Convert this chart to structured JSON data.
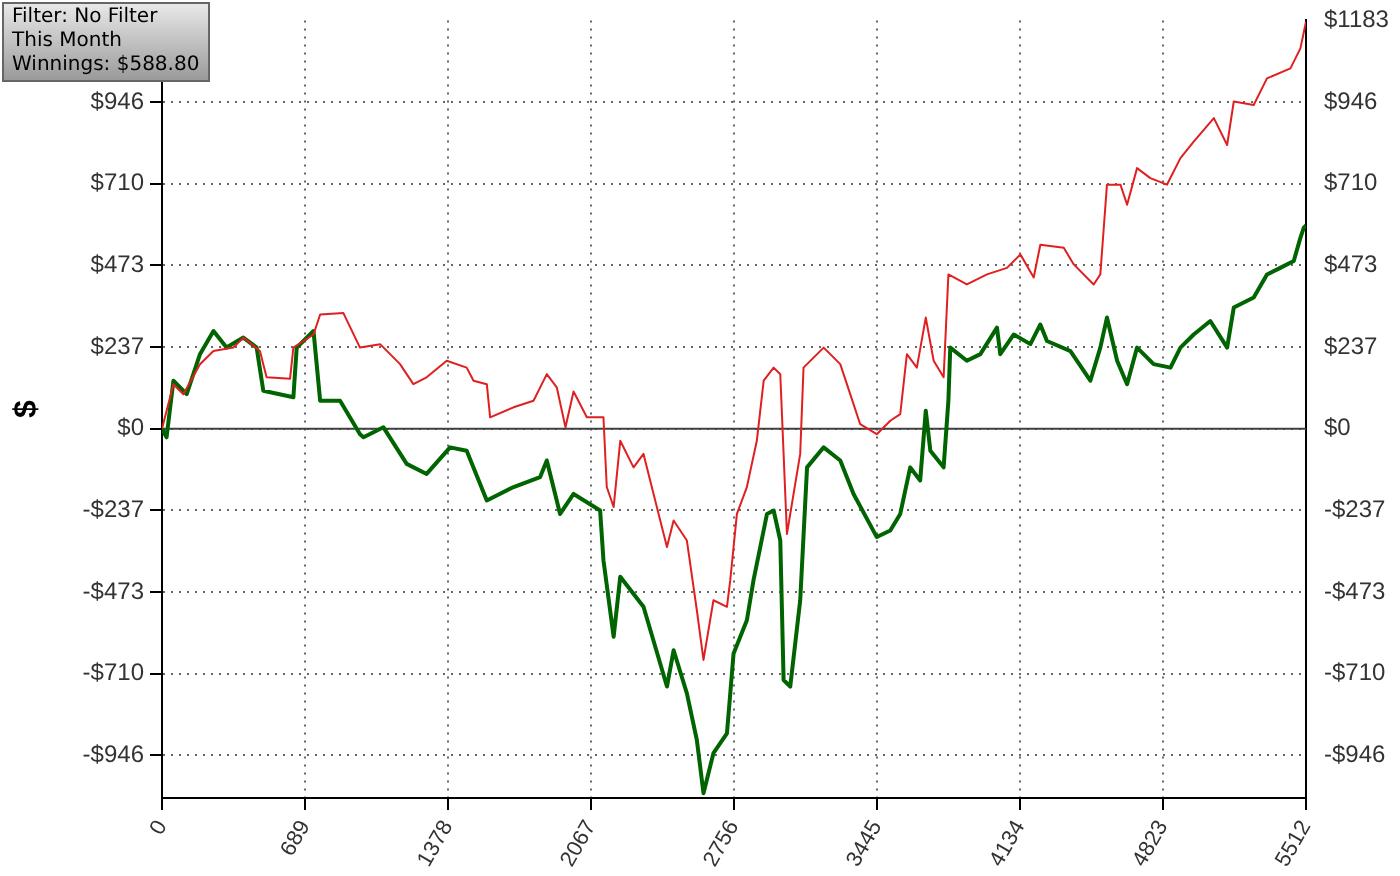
{
  "chart_data": {
    "type": "line",
    "ylabel": "$",
    "annotations": [
      "Filter: No Filter",
      "This Month",
      "Winnings: $588.80"
    ],
    "xlim": [
      0,
      5512
    ],
    "xticks": [
      0,
      689,
      1378,
      2067,
      2756,
      3445,
      4134,
      4823,
      5512
    ],
    "ylim": [
      -1070,
      1183
    ],
    "yticks": [
      {
        "value": -946,
        "label": "-$946"
      },
      {
        "value": -710,
        "label": "-$710"
      },
      {
        "value": -473,
        "label": "-$473"
      },
      {
        "value": -237,
        "label": "-$237"
      },
      {
        "value": 0,
        "label": "$0"
      },
      {
        "value": 237,
        "label": "$237"
      },
      {
        "value": 473,
        "label": "$473"
      },
      {
        "value": 710,
        "label": "$710"
      },
      {
        "value": 946,
        "label": "$946"
      }
    ],
    "y2lim": [
      -1070,
      1183
    ],
    "y2ticks": [
      {
        "value": -946,
        "label": "-$946"
      },
      {
        "value": -710,
        "label": "-$710"
      },
      {
        "value": -473,
        "label": "-$473"
      },
      {
        "value": -237,
        "label": "-$237"
      },
      {
        "value": 0,
        "label": "$0"
      },
      {
        "value": 237,
        "label": "$237"
      },
      {
        "value": 473,
        "label": "$473"
      },
      {
        "value": 710,
        "label": "$710"
      },
      {
        "value": 946,
        "label": "$946"
      },
      {
        "value": 1183,
        "label": "$1183"
      }
    ],
    "grid": true,
    "legend": false,
    "marker": "none",
    "line_style": "solid",
    "ref_lines": [
      {
        "axis": "y",
        "value": 0,
        "color": "#404040",
        "line_style": "solid"
      }
    ],
    "series": [
      {
        "color": "#e02020",
        "x": [
          0,
          55,
          103,
          183,
          248,
          344,
          392,
          472,
          488,
          504,
          617,
          633,
          730,
          762,
          874,
          954,
          1051,
          1147,
          1211,
          1275,
          1372,
          1468,
          1501,
          1565,
          1581,
          1694,
          1790,
          1854,
          1902,
          1944,
          1983,
          2047,
          2127,
          2143,
          2176,
          2208,
          2272,
          2320,
          2352,
          2433,
          2465,
          2529,
          2577,
          2609,
          2657,
          2722,
          2738,
          2770,
          2818,
          2866,
          2899,
          2947,
          2979,
          3011,
          3075,
          3091,
          3188,
          3268,
          3316,
          3364,
          3444,
          3509,
          3557,
          3589,
          3637,
          3680,
          3718,
          3766,
          3789,
          3878,
          3975,
          4071,
          4136,
          4200,
          4232,
          4345,
          4393,
          4489,
          4521,
          4553,
          4618,
          4650,
          4698,
          4762,
          4842,
          4907,
          4971,
          5068,
          5132,
          5164,
          5260,
          5324,
          5437,
          5485,
          5512
        ],
        "values": [
          0,
          129,
          100,
          187,
          225,
          235,
          264,
          225,
          187,
          149,
          145,
          235,
          273,
          331,
          335,
          235,
          245,
          187,
          129,
          149,
          197,
          177,
          139,
          129,
          33,
          62,
          81,
          158,
          120,
          4,
          108,
          33,
          33,
          -169,
          -227,
          -35,
          -112,
          -73,
          -150,
          -343,
          -266,
          -324,
          -526,
          -670,
          -497,
          -516,
          -439,
          -247,
          -169,
          -35,
          139,
          177,
          158,
          -305,
          -73,
          177,
          235,
          187,
          100,
          13,
          -16,
          23,
          42,
          216,
          177,
          322,
          197,
          149,
          447,
          418,
          447,
          466,
          505,
          438,
          533,
          524,
          476,
          418,
          447,
          707,
          707,
          649,
          755,
          726,
          707,
          784,
          832,
          900,
          822,
          948,
          938,
          1015,
          1044,
          1102,
          1179
        ]
      },
      {
        "color": "#006400",
        "x": [
          0,
          22,
          55,
          119,
          183,
          248,
          311,
          392,
          456,
          488,
          633,
          649,
          730,
          762,
          858,
          954,
          971,
          1067,
          1179,
          1275,
          1388,
          1468,
          1565,
          1694,
          1822,
          1854,
          1918,
          1983,
          2111,
          2127,
          2176,
          2208,
          2320,
          2433,
          2465,
          2529,
          2577,
          2609,
          2657,
          2722,
          2754,
          2818,
          2850,
          2915,
          2947,
          2979,
          2995,
          3027,
          3075,
          3108,
          3188,
          3268,
          3332,
          3444,
          3509,
          3557,
          3605,
          3653,
          3680,
          3702,
          3766,
          3789,
          3798,
          3878,
          3943,
          4023,
          4039,
          4104,
          4184,
          4232,
          4264,
          4377,
          4473,
          4521,
          4553,
          4602,
          4650,
          4698,
          4778,
          4859,
          4907,
          4971,
          5051,
          5132,
          5164,
          5260,
          5324,
          5388,
          5453,
          5485,
          5501,
          5512
        ],
        "values": [
          0,
          -25,
          139,
          100,
          216,
          283,
          235,
          264,
          235,
          110,
          91,
          235,
          283,
          81,
          81,
          -16,
          -25,
          4,
          -102,
          -131,
          -54,
          -64,
          -208,
          -169,
          -140,
          -92,
          -247,
          -189,
          -237,
          -381,
          -603,
          -429,
          -516,
          -747,
          -642,
          -767,
          -902,
          -1056,
          -940,
          -883,
          -651,
          -555,
          -439,
          -247,
          -237,
          -324,
          -728,
          -747,
          -497,
          -112,
          -54,
          -92,
          -189,
          -314,
          -295,
          -247,
          -112,
          -150,
          52,
          -64,
          -112,
          81,
          235,
          197,
          216,
          293,
          216,
          273,
          245,
          302,
          254,
          225,
          139,
          235,
          322,
          197,
          129,
          235,
          187,
          177,
          235,
          273,
          312,
          235,
          351,
          380,
          447,
          466,
          486,
          553,
          582,
          589
        ]
      }
    ]
  }
}
